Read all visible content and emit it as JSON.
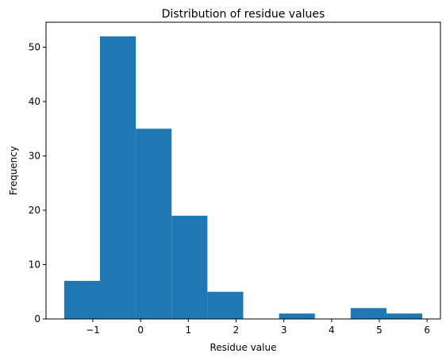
{
  "chart_data": {
    "type": "bar",
    "title": "Distribution of residue values",
    "xlabel": "Residue value",
    "ylabel": "Frequency",
    "bin_edges": [
      -1.6,
      -0.85,
      -0.1,
      0.65,
      1.4,
      2.15,
      2.9,
      3.65,
      4.4,
      5.15,
      5.9
    ],
    "values": [
      7,
      52,
      35,
      19,
      5,
      0,
      1,
      0,
      2,
      1
    ],
    "xlim": [
      -1.98,
      6.28
    ],
    "ylim": [
      0,
      54.6
    ],
    "xticks": [
      -1,
      0,
      1,
      2,
      3,
      4,
      5,
      6
    ],
    "xtick_labels": [
      "−1",
      "0",
      "1",
      "2",
      "3",
      "4",
      "5",
      "6"
    ],
    "yticks": [
      0,
      10,
      20,
      30,
      40,
      50
    ],
    "ytick_labels": [
      "0",
      "10",
      "20",
      "30",
      "40",
      "50"
    ],
    "grid": false,
    "legend": "none",
    "bar_color": "#1f77b4"
  }
}
